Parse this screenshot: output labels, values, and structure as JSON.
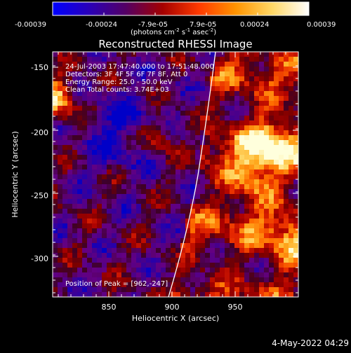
{
  "colorbar": {
    "ticks": [
      "-0.00039",
      "-0.00024",
      "-7.9e-05",
      "7.9e-05",
      "0.00024",
      "0.00039"
    ],
    "unit_main": "(photons cm",
    "unit_sup1": "-2",
    "unit_s": " s",
    "unit_sup2": "-1",
    "unit_asec": " asec",
    "unit_sup3": "-2",
    "unit_close": ")",
    "colors": [
      "#0000ff",
      "#2a00b8",
      "#540064",
      "#a40000",
      "#ff3a00",
      "#ff9400",
      "#ffd866",
      "#ffffff"
    ]
  },
  "title": "Reconstructed RHESSI Image",
  "annotations": {
    "time": "24-Jul-2003 17:47:40.000 to 17:51:48.000",
    "detectors": "Detectors: 3F 4F 5F 6F 7F 8F, Att 0",
    "energy": "Energy Range: 25.0 - 50.0 keV",
    "counts": "Clean    Total counts: 3.74E+03",
    "peak": "Position of Peak = [962,-247]"
  },
  "axes": {
    "xlabel": "Heliocentric X (arcsec)",
    "ylabel": "Heliocentric Y (arcsec)",
    "xticks": [
      "850",
      "900",
      "950"
    ],
    "yticks": [
      "-150",
      "-200",
      "-250",
      "-300"
    ]
  },
  "footer": {
    "date": "4-May-2022 04:29"
  }
}
